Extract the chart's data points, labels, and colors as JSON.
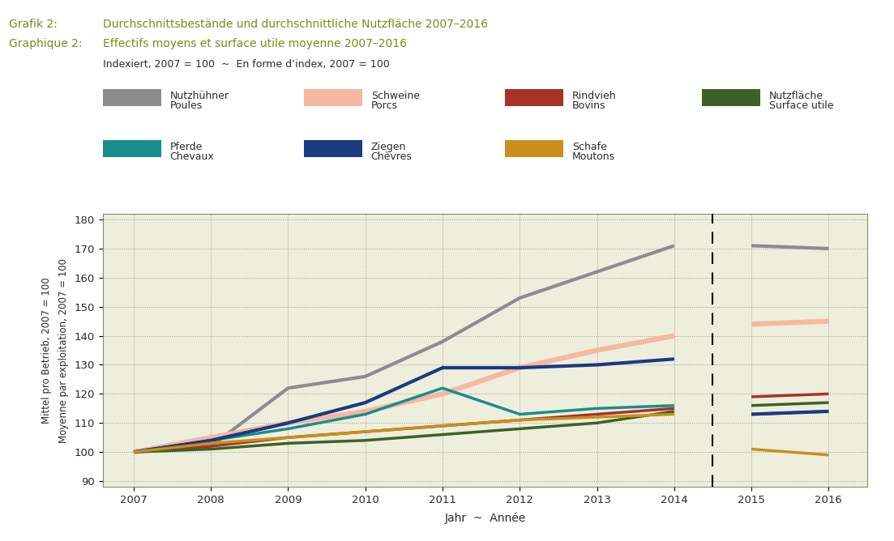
{
  "title_left1": "Grafik 2:",
  "title_left2": "Graphique 2:",
  "subtitle1": "Durchschnittsbestände und durchschnittliche Nutzfläche 2007–2016",
  "subtitle2": "Effectifs moyens et surface utile moyenne 2007–2016",
  "index_label": "Indexiert, 2007 = 100  ~  En forme d’index, 2007 = 100",
  "ylabel_line1": "Mittel pro Betrieb, 2007 = 100",
  "ylabel_line2": "Moyenne par exploitation, 2007 = 100",
  "xlabel": "Jahr  ~  Année",
  "years_main": [
    2007,
    2008,
    2009,
    2010,
    2011,
    2012,
    2013,
    2014
  ],
  "years_extra": [
    2015,
    2016
  ],
  "series": [
    {
      "name": "Nutzhühner\nPoules",
      "color": "#8c8c8c",
      "linewidth": 3.0,
      "values_main": [
        100,
        102,
        122,
        126,
        138,
        153,
        162,
        171
      ],
      "values_extra": [
        171,
        170
      ]
    },
    {
      "name": "Schweine\nPorcs",
      "color": "#f5b8a0",
      "linewidth": 4.5,
      "values_main": [
        100,
        105,
        110,
        114,
        120,
        129,
        135,
        140
      ],
      "values_extra": [
        144,
        145
      ]
    },
    {
      "name": "Rindvieh\nBovins",
      "color": "#a83228",
      "linewidth": 2.5,
      "values_main": [
        100,
        102,
        105,
        107,
        109,
        111,
        113,
        115
      ],
      "values_extra": [
        119,
        120
      ]
    },
    {
      "name": "Nutzfläche\nSurface utile",
      "color": "#3d6125",
      "linewidth": 2.5,
      "values_main": [
        100,
        101,
        103,
        104,
        106,
        108,
        110,
        114
      ],
      "values_extra": [
        116,
        117
      ]
    },
    {
      "name": "Pferde\nChevaux",
      "color": "#1a8c8c",
      "linewidth": 2.5,
      "values_main": [
        100,
        104,
        108,
        113,
        122,
        113,
        115,
        116
      ],
      "values_extra": [
        113,
        114
      ]
    },
    {
      "name": "Ziegen\nChèvres",
      "color": "#1a3a82",
      "linewidth": 3.0,
      "values_main": [
        100,
        104,
        110,
        117,
        129,
        129,
        130,
        132
      ],
      "values_extra": [
        113,
        114
      ]
    },
    {
      "name": "Schafe\nMoutons",
      "color": "#c8901a",
      "linewidth": 2.5,
      "values_main": [
        100,
        103,
        105,
        107,
        109,
        111,
        112,
        113
      ],
      "values_extra": [
        101,
        99
      ]
    }
  ],
  "plot_bg": "#eeeedd",
  "ylim": [
    88,
    182
  ],
  "yticks": [
    90,
    100,
    110,
    120,
    130,
    140,
    150,
    160,
    170,
    180
  ],
  "dashed_vline_x": 2014.5,
  "olive_color": "#7a8c1a",
  "dark_text": "#2a2a2a",
  "legend_row1": [
    0,
    1,
    2,
    3
  ],
  "legend_row2": [
    4,
    5,
    6
  ]
}
